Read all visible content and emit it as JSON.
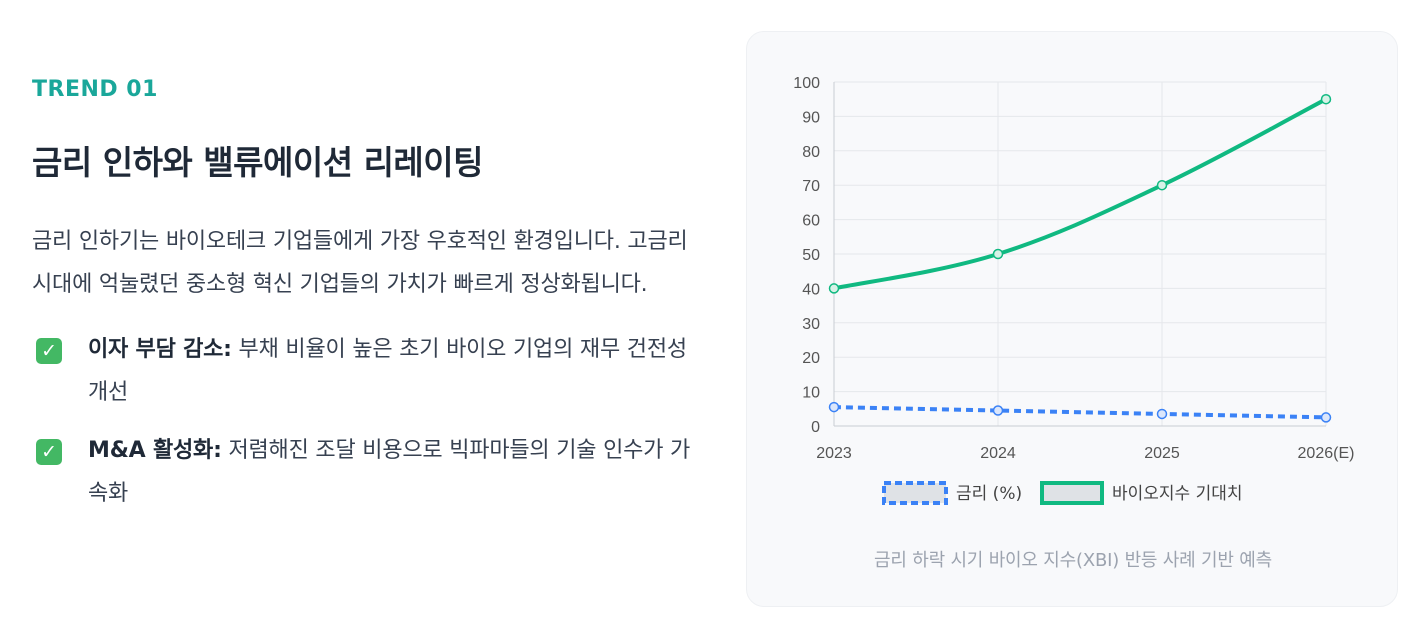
{
  "trend_tag": "TREND 01",
  "heading": "금리 인하와 밸류에이션 리레이팅",
  "description": "금리 인하기는 바이오테크 기업들에게 가장 우호적인 환경입니다. 고금리 시대에 억눌렸던 중소형 혁신 기업들의 가치가 빠르게 정상화됩니다.",
  "bullets": [
    {
      "title": "이자 부담 감소:",
      "text": " 부채 비율이 높은 초기 바이오 기업의 재무 건전성 개선",
      "icon": "check-mark-icon"
    },
    {
      "title": "M&A 활성화:",
      "text": " 저렴해진 조달 비용으로 빅파마들의 기술 인수가 가속화",
      "icon": "check-mark-icon"
    }
  ],
  "chart_caption": "금리 하락 시기 바이오 지수(XBI) 반등 사례 기반 예측",
  "colors": {
    "accent": "#1aa79a",
    "check": "#43b864",
    "rate_line": "#3b82f6",
    "bio_line": "#10b981"
  },
  "chart_data": {
    "type": "line",
    "categories": [
      "2023",
      "2024",
      "2025",
      "2026(E)"
    ],
    "ylim": [
      0,
      100
    ],
    "yticks": [
      0,
      10,
      20,
      30,
      40,
      50,
      60,
      70,
      80,
      90,
      100
    ],
    "grid": true,
    "legend_position": "bottom",
    "series": [
      {
        "name": "금리 (%)",
        "values": [
          5.5,
          4.5,
          3.5,
          2.5
        ],
        "color": "#3b82f6",
        "style": "dashed"
      },
      {
        "name": "바이오지수 기대치",
        "values": [
          40,
          50,
          70,
          95
        ],
        "color": "#10b981",
        "style": "solid"
      }
    ]
  }
}
